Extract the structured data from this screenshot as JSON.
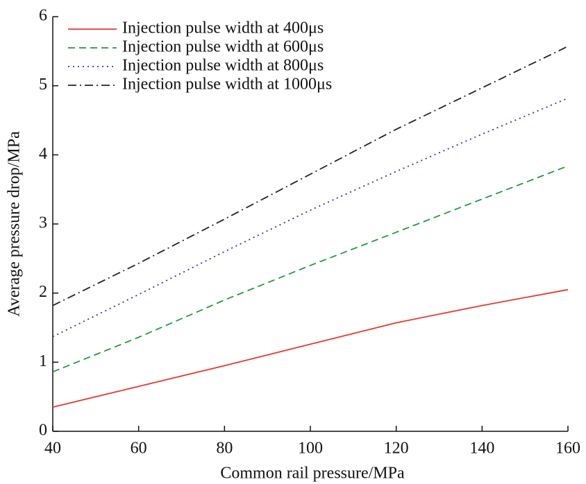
{
  "chart_data": {
    "type": "line",
    "xlabel": "Common rail pressure/MPa",
    "ylabel": "Average pressure drop/MPa",
    "x": [
      40,
      60,
      80,
      100,
      120,
      140,
      160
    ],
    "series": [
      {
        "name": "Injection pulse width at 400μs",
        "color": "#e8392b",
        "linestyle": "solid",
        "values": [
          0.35,
          0.65,
          0.95,
          1.26,
          1.57,
          1.82,
          2.05
        ]
      },
      {
        "name": "Injection pulse width at 600μs",
        "color": "#1e9a3c",
        "linestyle": "dashed",
        "values": [
          0.86,
          1.36,
          1.9,
          2.4,
          2.88,
          3.36,
          3.84
        ]
      },
      {
        "name": "Injection pulse width at 800μs",
        "color": "#3030b0",
        "linestyle": "dotted",
        "values": [
          1.37,
          1.98,
          2.6,
          3.2,
          3.76,
          4.3,
          4.82
        ]
      },
      {
        "name": "Injection pulse width at 1000μs",
        "color": "#222222",
        "linestyle": "dashdot",
        "values": [
          1.82,
          2.43,
          3.07,
          3.72,
          4.37,
          4.97,
          5.57
        ]
      }
    ],
    "xlim": [
      40,
      160
    ],
    "xticks": [
      40,
      60,
      80,
      100,
      120,
      140,
      160
    ],
    "ylim": [
      0,
      6
    ],
    "yticks": [
      0,
      1,
      2,
      3,
      4,
      5,
      6
    ],
    "grid": false,
    "legend": "upper left"
  }
}
